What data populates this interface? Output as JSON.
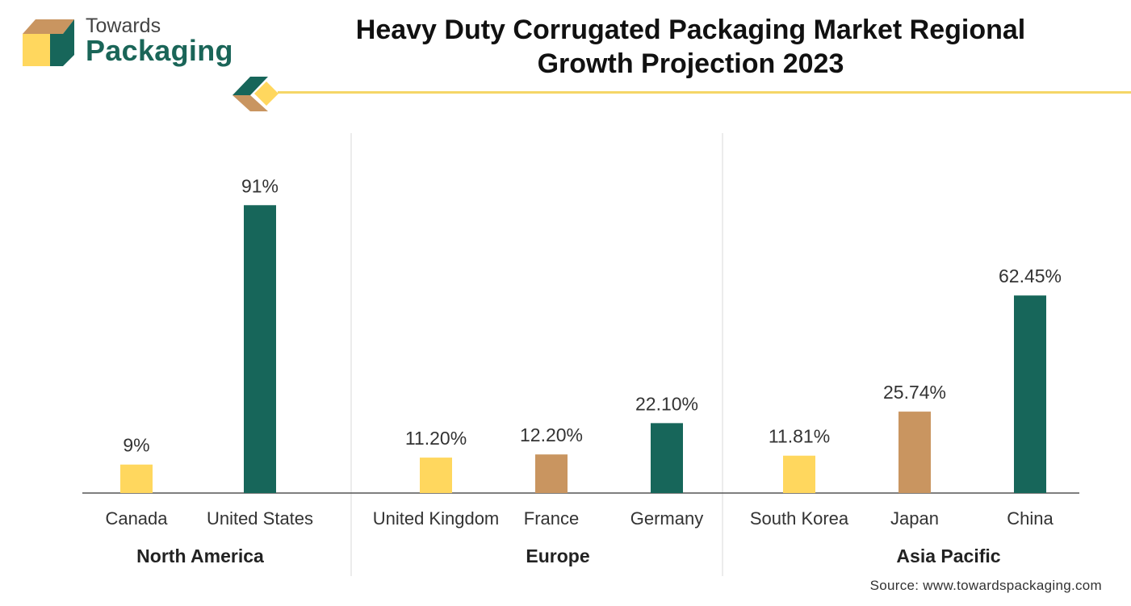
{
  "logo": {
    "line1": "Towards",
    "line2": "Packaging"
  },
  "title_line1": "Heavy Duty Corrugated Packaging Market Regional",
  "title_line2": "Growth Projection 2023",
  "source": "Source: www.towardspackaging.com",
  "colors": {
    "yellow": "#ffd75e",
    "tan": "#c99560",
    "green": "#17665a",
    "axis": "#555555",
    "separator": "#d9d9d9",
    "accent_line": "#f5d667"
  },
  "chart_data": {
    "type": "bar",
    "title": "Heavy Duty Corrugated Packaging Market Regional Growth Projection 2023",
    "ylim": [
      0,
      100
    ],
    "grid": false,
    "groups": [
      {
        "name": "North America",
        "bars": [
          {
            "category": "Canada",
            "value": 9,
            "label": "9%",
            "color": "#ffd75e"
          },
          {
            "category": "United States",
            "value": 91,
            "label": "91%",
            "color": "#17665a"
          }
        ]
      },
      {
        "name": "Europe",
        "bars": [
          {
            "category": "United Kingdom",
            "value": 11.2,
            "label": "11.20%",
            "color": "#ffd75e"
          },
          {
            "category": "France",
            "value": 12.2,
            "label": "12.20%",
            "color": "#c99560"
          },
          {
            "category": "Germany",
            "value": 22.1,
            "label": "22.10%",
            "color": "#17665a"
          }
        ]
      },
      {
        "name": "Asia Pacific",
        "bars": [
          {
            "category": "South Korea",
            "value": 11.81,
            "label": "11.81%",
            "color": "#ffd75e"
          },
          {
            "category": "Japan",
            "value": 25.74,
            "label": "25.74%",
            "color": "#c99560"
          },
          {
            "category": "China",
            "value": 62.45,
            "label": "62.45%",
            "color": "#17665a"
          }
        ]
      }
    ]
  }
}
